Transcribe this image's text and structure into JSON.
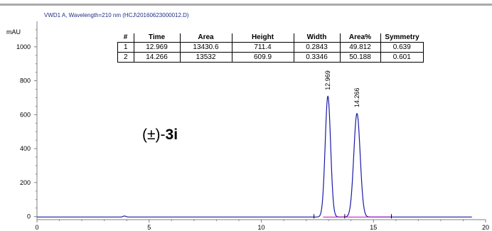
{
  "header": {
    "signal_title": "VWD1 A, Wavelength=210 nm (HCJ\\20160623000012.D)"
  },
  "compound_label": {
    "prefix": "(±)-",
    "id": "3i"
  },
  "peak_table": {
    "columns": [
      "#",
      "Time",
      "Area",
      "Height",
      "Width",
      "Area%",
      "Symmetry"
    ],
    "rows": [
      [
        "1",
        "12.969",
        "13430.6",
        "711.4",
        "0.2843",
        "49.812",
        "0.639"
      ],
      [
        "2",
        "14.266",
        "13532",
        "609.9",
        "0.3346",
        "50.188",
        "0.601"
      ]
    ]
  },
  "chart_data": {
    "type": "line",
    "ylabel": "mAU",
    "xlim": [
      0,
      20
    ],
    "ylim": [
      -10,
      1150
    ],
    "x_ticks": [
      0,
      5,
      10,
      15,
      20
    ],
    "x_tick_labels": [
      "0",
      "5",
      "10",
      "15",
      "20"
    ],
    "y_ticks": [
      0,
      200,
      400,
      600,
      800,
      1000
    ],
    "y_tick_labels": [
      "0",
      "200",
      "400",
      "600",
      "800",
      "1000"
    ],
    "baseline_mAU": -3,
    "peaks": [
      {
        "time": 12.969,
        "height": 711.4,
        "width": 0.2843,
        "label": "12.969"
      },
      {
        "time": 14.266,
        "height": 609.9,
        "width": 0.3346,
        "label": "14.266"
      }
    ],
    "minor_bump": {
      "time": 3.9,
      "height": 6
    },
    "integration_baseline": {
      "x_start": 12.75,
      "x_end": 15.8
    },
    "colors": {
      "signal": "#1a1aa6",
      "integration_baseline": "#cc00cc",
      "axes": "#808080"
    }
  }
}
